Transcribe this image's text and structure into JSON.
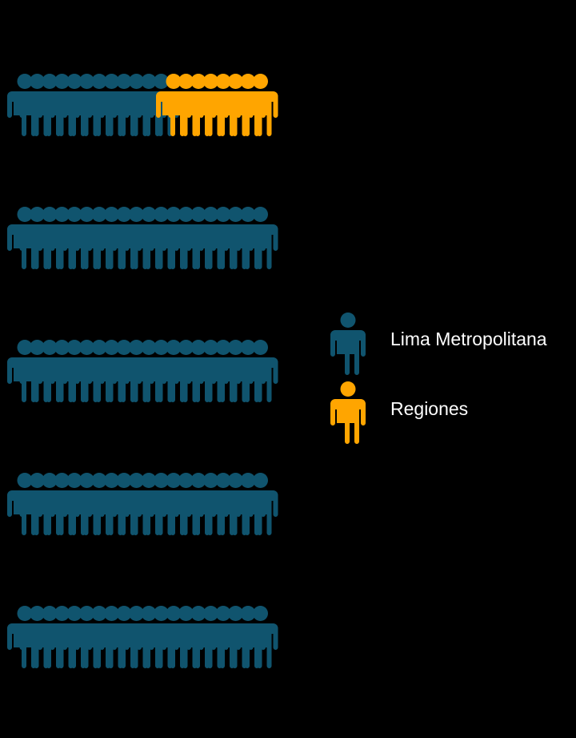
{
  "chart_data": {
    "type": "pictograph",
    "icons_per_row": 20,
    "rows": [
      {
        "lima": 12,
        "regiones": 8
      },
      {
        "lima": 20,
        "regiones": 0
      },
      {
        "lima": 20,
        "regiones": 0
      },
      {
        "lima": 20,
        "regiones": 0
      },
      {
        "lima": 20,
        "regiones": 0
      }
    ],
    "legend": [
      {
        "key": "lima",
        "label": "Lima Metropolitana",
        "color": "#10546e"
      },
      {
        "key": "regiones",
        "label": "Regiones",
        "color": "#ffa500"
      }
    ]
  }
}
